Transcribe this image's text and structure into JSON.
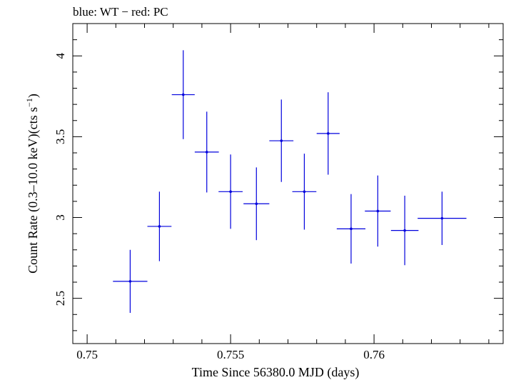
{
  "chart_data": {
    "type": "scatter",
    "title": "blue: WT − red: PC",
    "xlabel": "Time Since 56380.0 MJD (days)",
    "ylabel": "Count Rate (0.3–10.0 keV)(cts s",
    "ylabel_sup": "−1",
    "ylabel_close": ")",
    "xlim": [
      0.7495,
      0.7645
    ],
    "ylim": [
      2.22,
      4.2
    ],
    "x_ticks": [
      0.75,
      0.755,
      0.76
    ],
    "x_tick_labels": [
      "0.75",
      "0.755",
      "0.76"
    ],
    "y_ticks": [
      2.5,
      3,
      3.5,
      4
    ],
    "y_tick_labels": [
      "2.5",
      "3",
      "3.5",
      "4"
    ],
    "grid": false,
    "series": [
      {
        "color": "#0000dd",
        "points": [
          {
            "x": 0.7515,
            "y": 2.605,
            "xerr": 0.0006,
            "yerr": 0.195
          },
          {
            "x": 0.75252,
            "y": 2.945,
            "xerr": 0.00042,
            "yerr": 0.215
          },
          {
            "x": 0.75335,
            "y": 3.76,
            "xerr": 0.0004,
            "yerr": 0.275
          },
          {
            "x": 0.75417,
            "y": 3.405,
            "xerr": 0.00042,
            "yerr": 0.25
          },
          {
            "x": 0.755,
            "y": 3.16,
            "xerr": 0.00042,
            "yerr": 0.23
          },
          {
            "x": 0.7559,
            "y": 3.085,
            "xerr": 0.00045,
            "yerr": 0.225
          },
          {
            "x": 0.75677,
            "y": 3.475,
            "xerr": 0.00042,
            "yerr": 0.255
          },
          {
            "x": 0.75757,
            "y": 3.16,
            "xerr": 0.00042,
            "yerr": 0.235
          },
          {
            "x": 0.7584,
            "y": 3.52,
            "xerr": 0.0004,
            "yerr": 0.255
          },
          {
            "x": 0.7592,
            "y": 2.93,
            "xerr": 0.0005,
            "yerr": 0.215
          },
          {
            "x": 0.76013,
            "y": 3.04,
            "xerr": 0.00045,
            "yerr": 0.22
          },
          {
            "x": 0.76107,
            "y": 2.92,
            "xerr": 0.00048,
            "yerr": 0.215
          },
          {
            "x": 0.76237,
            "y": 2.995,
            "xerr": 0.00085,
            "yerr": 0.165
          }
        ]
      }
    ]
  }
}
